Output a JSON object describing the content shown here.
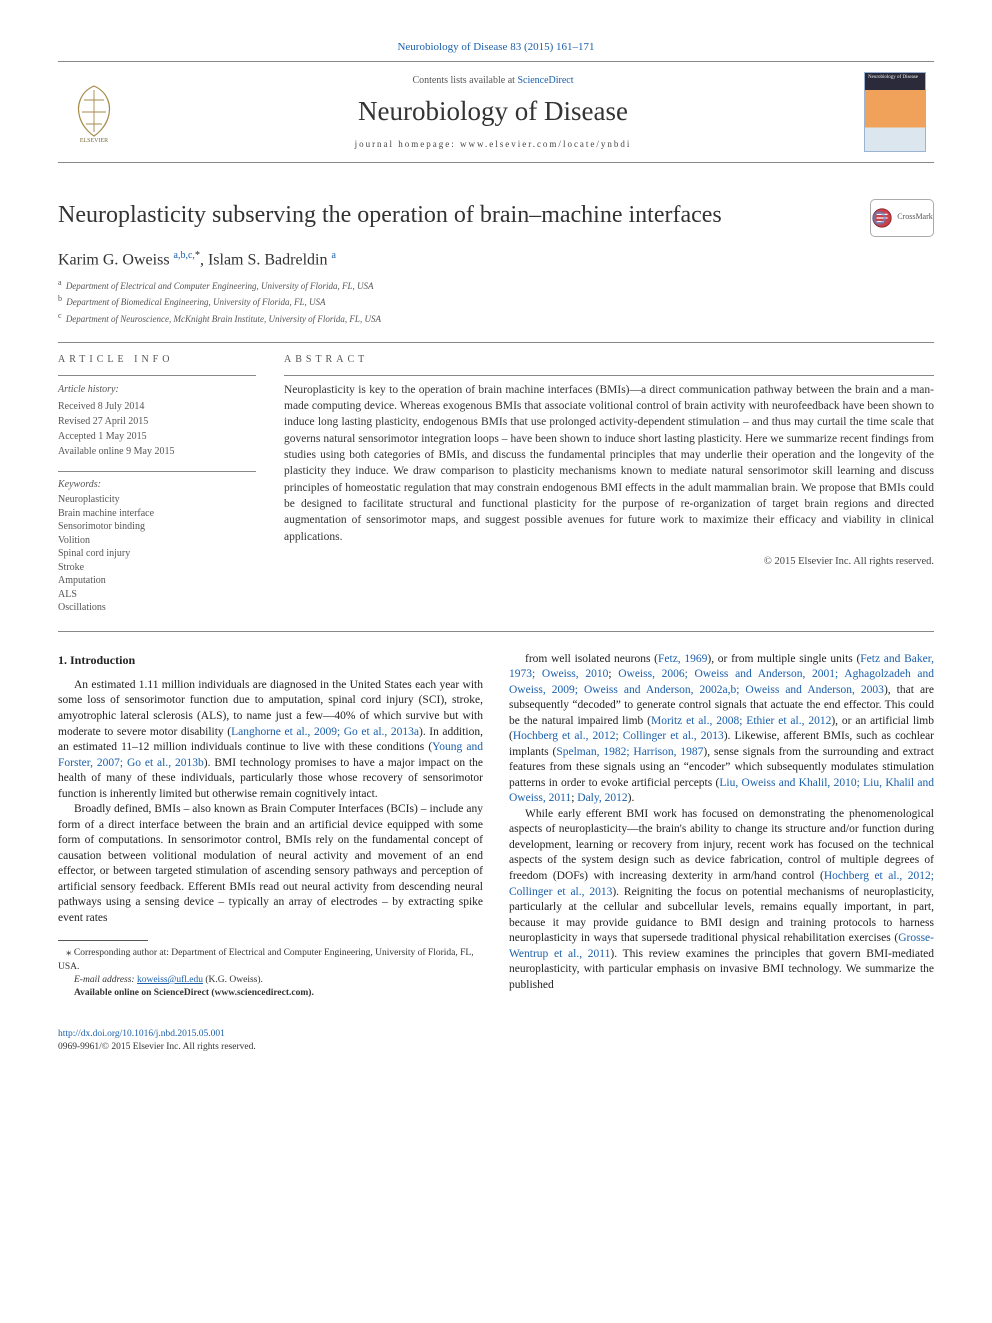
{
  "colors": {
    "link": "#1b5faa",
    "text": "#222222",
    "muted": "#555555",
    "rule": "#888888",
    "bg": "#ffffff"
  },
  "typography": {
    "body_pt": 11.5,
    "title_pt": 24,
    "journal_pt": 27,
    "author_pt": 16,
    "small_pt": 10,
    "tiny_pt": 9
  },
  "journal_ref": {
    "text": "Neurobiology of Disease 83 (2015) 161–171",
    "url_label": "Neurobiology of Disease 83 (2015) 161–171"
  },
  "masthead": {
    "contents_prefix": "Contents lists available at ",
    "contents_link": "ScienceDirect",
    "journal": "Neurobiology of Disease",
    "homepage": "journal homepage: www.elsevier.com/locate/ynbdi"
  },
  "title": "Neuroplasticity subserving the operation of brain–machine interfaces",
  "crossmark_label": "CrossMark",
  "authors_html": "Karim G. Oweiss <sup class=\"affmark\">a,b,c,</sup><sup class=\"corr\">*</sup>, Islam S. Badreldin <sup class=\"affmark\">a</sup>",
  "affiliations": [
    {
      "mark": "a",
      "text": "Department of Electrical and Computer Engineering, University of Florida, FL, USA"
    },
    {
      "mark": "b",
      "text": "Department of Biomedical Engineering, University of Florida, FL, USA"
    },
    {
      "mark": "c",
      "text": "Department of Neuroscience, McKnight Brain Institute, University of Florida, FL, USA"
    }
  ],
  "info_label": "article info",
  "abstract_label": "abstract",
  "history": {
    "title": "Article history:",
    "items": [
      "Received 8 July 2014",
      "Revised 27 April 2015",
      "Accepted 1 May 2015",
      "Available online 9 May 2015"
    ]
  },
  "keywords": {
    "title": "Keywords:",
    "items": [
      "Neuroplasticity",
      "Brain machine interface",
      "Sensorimotor binding",
      "Volition",
      "Spinal cord injury",
      "Stroke",
      "Amputation",
      "ALS",
      "Oscillations"
    ]
  },
  "abstract": "Neuroplasticity is key to the operation of brain machine interfaces (BMIs)—a direct communication pathway between the brain and a man-made computing device. Whereas exogenous BMIs that associate volitional control of brain activity with neurofeedback have been shown to induce long lasting plasticity, endogenous BMIs that use prolonged activity-dependent stimulation – and thus may curtail the time scale that governs natural sensorimotor integration loops – have been shown to induce short lasting plasticity. Here we summarize recent findings from studies using both categories of BMIs, and discuss the fundamental principles that may underlie their operation and the longevity of the plasticity they induce. We draw comparison to plasticity mechanisms known to mediate natural sensorimotor skill learning and discuss principles of homeostatic regulation that may constrain endogenous BMI effects in the adult mammalian brain. We propose that BMIs could be designed to facilitate structural and functional plasticity for the purpose of re-organization of target brain regions and directed augmentation of sensorimotor maps, and suggest possible avenues for future work to maximize their efficacy and viability in clinical applications.",
  "copyright": "© 2015 Elsevier Inc. All rights reserved.",
  "section1_heading": "1. Introduction",
  "para1a": "An estimated 1.11 million individuals are diagnosed in the United States each year with some loss of sensorimotor function due to amputation, spinal cord injury (SCI), stroke, amyotrophic lateral sclerosis (ALS), to name just a few—40% of which survive but with moderate to severe motor disability (",
  "cite1": "Langhorne et al., 2009; Go et al., 2013a",
  "para1b": "). In addition, an estimated 11–12 million individuals continue to live with these conditions (",
  "cite2": "Young and Forster, 2007; Go et al., 2013b",
  "para1c": "). BMI technology promises to have a major impact on the health of many of these individuals, particularly those whose recovery of sensorimotor function is inherently limited but otherwise remain cognitively intact.",
  "para2": "Broadly defined, BMIs – also known as Brain Computer Interfaces (BCIs) – include any form of a direct interface between the brain and an artificial device equipped with some form of computations. In sensorimotor control, BMIs rely on the fundamental concept of causation between volitional modulation of neural activity and movement of an end effector, or between targeted stimulation of ascending sensory pathways and perception of artificial sensory feedback. Efferent BMIs read out neural activity from descending neural pathways using a sensing device – typically an array of electrodes – by extracting spike event rates",
  "para3a": "from well isolated neurons (",
  "cite3": "Fetz, 1969",
  "para3b": "), or from multiple single units (",
  "cite4": "Fetz and Baker, 1973; Oweiss, 2010",
  "para3c": "; ",
  "cite5": "Oweiss, 2006; Oweiss and Anderson, 2001; Aghagolzadeh and Oweiss, 2009; Oweiss and Anderson, 2002a,b; Oweiss and Anderson, 2003",
  "para3d": "), that are subsequently “decoded” to generate control signals that actuate the end effector. This could be the natural impaired limb (",
  "cite6": "Moritz et al., 2008; Ethier et al., 2012",
  "para3e": "), or an artificial limb (",
  "cite7": "Hochberg et al., 2012; Collinger et al., 2013",
  "para3f": "). Likewise, afferent BMIs, such as cochlear implants (",
  "cite8": "Spelman, 1982; Harrison, 1987",
  "para3g": "), sense signals from the surrounding and extract features from these signals using an “encoder” which subsequently modulates stimulation patterns in order to evoke artificial percepts (",
  "cite9": "Liu, Oweiss and Khalil, 2010; Liu, Khalil and Oweiss, 2011",
  "para3h": "; ",
  "cite10": "Daly, 2012",
  "para3i": ").",
  "para4a": "While early efferent BMI work has focused on demonstrating the phenomenological aspects of neuroplasticity—the brain's ability to change its structure and/or function during development, learning or recovery from injury, recent work has focused on the technical aspects of the system design such as device fabrication, control of multiple degrees of freedom (DOFs) with increasing dexterity in arm/hand control (",
  "cite11": "Hochberg et al., 2012; Collinger et al., 2013",
  "para4b": "). Reigniting the focus on potential mechanisms of neuroplasticity, particularly at the cellular and subcellular levels, remains equally important, in part, because it may provide guidance to BMI design and training protocols to harness neuroplasticity in ways that supersede traditional physical rehabilitation exercises (",
  "cite12": "Grosse-Wentrup et al., 2011",
  "para4c": "). This review examines the principles that govern BMI-mediated neuroplasticity, with particular emphasis on invasive BMI technology. We summarize the published",
  "footnote_corr": "Corresponding author at: Department of Electrical and Computer Engineering, University of Florida, FL, USA.",
  "footnote_email_label": "E-mail address: ",
  "footnote_email": "koweiss@ufl.edu",
  "footnote_email_suffix": " (K.G. Oweiss).",
  "footnote_online": "Available online on ScienceDirect (www.sciencedirect.com).",
  "doi": "http://dx.doi.org/10.1016/j.nbd.2015.05.001",
  "issn_line": "0969-9961/© 2015 Elsevier Inc. All rights reserved."
}
